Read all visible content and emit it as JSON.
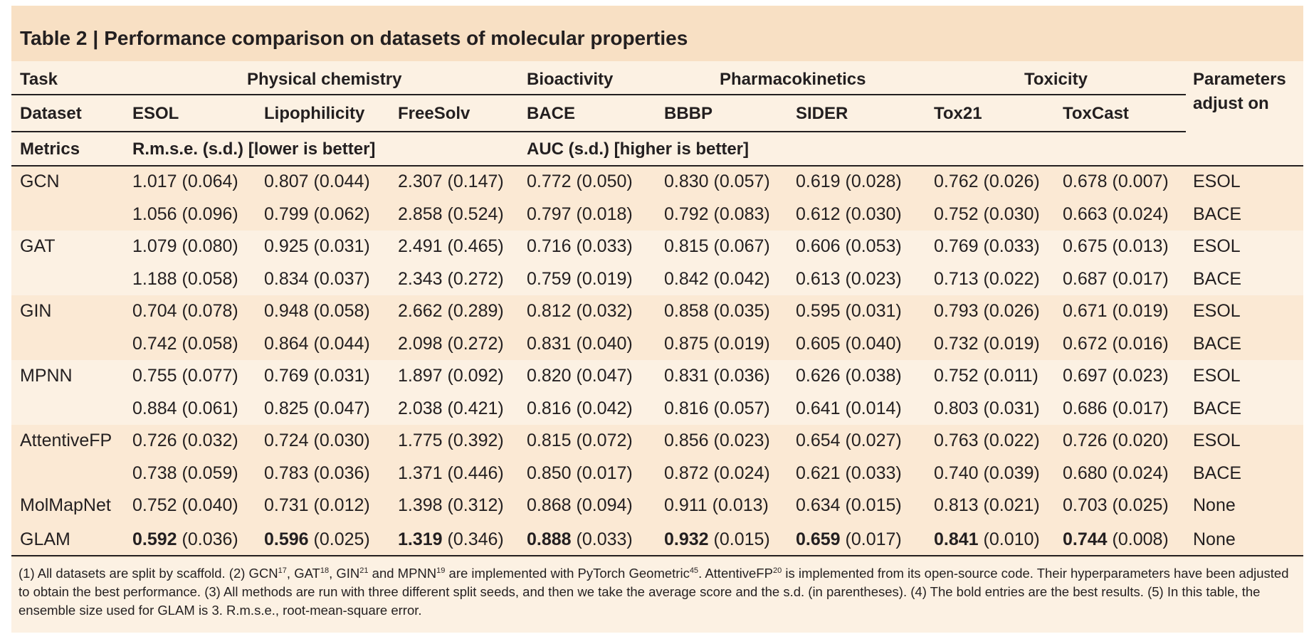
{
  "table": {
    "label": "Table 2",
    "separator": "|",
    "caption": "Performance comparison on datasets of molecular properties",
    "row_labels": {
      "task": "Task",
      "dataset": "Dataset",
      "metrics": "Metrics"
    },
    "groups": {
      "physical": "Physical chemistry",
      "bioactivity": "Bioactivity",
      "pharmacokinetics": "Pharmacokinetics",
      "toxicity": "Toxicity",
      "params_line1": "Parameters",
      "params_line2": "adjust on"
    },
    "datasets": [
      "ESOL",
      "Lipophilicity",
      "FreeSolv",
      "BACE",
      "BBBP",
      "SIDER",
      "Tox21",
      "ToxCast"
    ],
    "metrics": {
      "rmse": "R.m.s.e. (s.d.) [lower is better]",
      "auc": "AUC (s.d.) [higher is better]"
    },
    "rows": [
      {
        "model": "GCN",
        "param": "ESOL",
        "values": [
          "1.017 (0.064)",
          "0.807 (0.044)",
          "2.307 (0.147)",
          "0.772 (0.050)",
          "0.830 (0.057)",
          "0.619 (0.028)",
          "0.762 (0.026)",
          "0.678 (0.007)"
        ]
      },
      {
        "model": "",
        "param": "BACE",
        "values": [
          "1.056 (0.096)",
          "0.799 (0.062)",
          "2.858 (0.524)",
          "0.797 (0.018)",
          "0.792 (0.083)",
          "0.612 (0.030)",
          "0.752 (0.030)",
          "0.663 (0.024)"
        ]
      },
      {
        "model": "GAT",
        "param": "ESOL",
        "values": [
          "1.079 (0.080)",
          "0.925 (0.031)",
          "2.491 (0.465)",
          "0.716 (0.033)",
          "0.815 (0.067)",
          "0.606 (0.053)",
          "0.769 (0.033)",
          "0.675 (0.013)"
        ]
      },
      {
        "model": "",
        "param": "BACE",
        "values": [
          "1.188 (0.058)",
          "0.834 (0.037)",
          "2.343 (0.272)",
          "0.759 (0.019)",
          "0.842 (0.042)",
          "0.613 (0.023)",
          "0.713 (0.022)",
          "0.687 (0.017)"
        ]
      },
      {
        "model": "GIN",
        "param": "ESOL",
        "values": [
          "0.704 (0.078)",
          "0.948 (0.058)",
          "2.662 (0.289)",
          "0.812 (0.032)",
          "0.858 (0.035)",
          "0.595 (0.031)",
          "0.793 (0.026)",
          "0.671 (0.019)"
        ]
      },
      {
        "model": "",
        "param": "BACE",
        "values": [
          "0.742 (0.058)",
          "0.864 (0.044)",
          "2.098 (0.272)",
          "0.831 (0.040)",
          "0.875 (0.019)",
          "0.605 (0.040)",
          "0.732 (0.019)",
          "0.672 (0.016)"
        ]
      },
      {
        "model": "MPNN",
        "param": "ESOL",
        "values": [
          "0.755 (0.077)",
          "0.769 (0.031)",
          "1.897 (0.092)",
          "0.820 (0.047)",
          "0.831 (0.036)",
          "0.626 (0.038)",
          "0.752 (0.011)",
          "0.697 (0.023)"
        ]
      },
      {
        "model": "",
        "param": "BACE",
        "values": [
          "0.884 (0.061)",
          "0.825 (0.047)",
          "2.038 (0.421)",
          "0.816 (0.042)",
          "0.816 (0.057)",
          "0.641 (0.014)",
          "0.803 (0.031)",
          "0.686 (0.017)"
        ]
      },
      {
        "model": "AttentiveFP",
        "param": "ESOL",
        "values": [
          "0.726 (0.032)",
          "0.724 (0.030)",
          "1.775 (0.392)",
          "0.815 (0.072)",
          "0.856 (0.023)",
          "0.654 (0.027)",
          "0.763 (0.022)",
          "0.726 (0.020)"
        ]
      },
      {
        "model": "",
        "param": "BACE",
        "values": [
          "0.738 (0.059)",
          "0.783 (0.036)",
          "1.371 (0.446)",
          "0.850 (0.017)",
          "0.872 (0.024)",
          "0.621 (0.033)",
          "0.740 (0.039)",
          "0.680 (0.024)"
        ]
      },
      {
        "model": "MolMapNet",
        "param": "None",
        "values": [
          "0.752 (0.040)",
          "0.731 (0.012)",
          "1.398 (0.312)",
          "0.868 (0.094)",
          "0.911 (0.013)",
          "0.634 (0.015)",
          "0.813 (0.021)",
          "0.703 (0.025)"
        ]
      }
    ],
    "glam": {
      "model": "GLAM",
      "param": "None",
      "best": [
        "0.592",
        "0.596",
        "1.319",
        "0.888",
        "0.932",
        "0.659",
        "0.841",
        "0.744"
      ],
      "sd": [
        "(0.036)",
        "(0.025)",
        "(0.346)",
        "(0.033)",
        "(0.015)",
        "(0.017)",
        "(0.010)",
        "(0.008)"
      ]
    }
  },
  "footnote": {
    "p1": "(1) All datasets are split by scaffold. (2) GCN",
    "r1": "17",
    "p2": ", GAT",
    "r2": "18",
    "p3": ", GIN",
    "r3": "21",
    "p4": " and MPNN",
    "r4": "19",
    "p5": " are implemented with PyTorch Geometric",
    "r5": "45",
    "p6": ". AttentiveFP",
    "r6": "20",
    "p7": " is implemented from its open-source code. Their hyperparameters have been adjusted to obtain the best performance. (3) All methods are run with three different split seeds, and then we take the average score and the s.d. (in parentheses). (4) The bold entries are the best results. (5) In this table, the ensemble size used for GLAM is 3. R.m.s.e., root-mean-square error."
  }
}
